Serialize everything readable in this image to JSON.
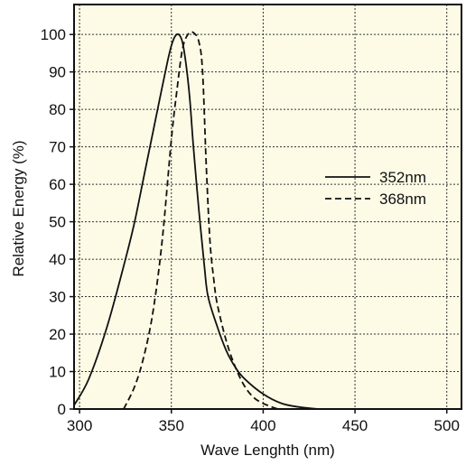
{
  "chart_data": {
    "type": "line",
    "title": "",
    "xlabel": "Wave Lenghth (nm)",
    "ylabel": "Relative Energy (%)",
    "xlim": [
      297,
      508
    ],
    "ylim": [
      0,
      108
    ],
    "xticks": [
      300,
      350,
      400,
      450,
      500
    ],
    "yticks": [
      0,
      10,
      20,
      30,
      40,
      50,
      60,
      70,
      80,
      90,
      100
    ],
    "xtick_labels": [
      "300",
      "350",
      "400",
      "450",
      "500"
    ],
    "ytick_labels": [
      "0",
      "10",
      "20",
      "30",
      "40",
      "50",
      "60",
      "70",
      "80",
      "90",
      "100"
    ],
    "grid": true,
    "legend_position": "right",
    "background_color": "#fdfbe6",
    "series": [
      {
        "name": "352nm",
        "style": "solid",
        "color": "#111111",
        "points": [
          [
            297,
            1
          ],
          [
            305,
            8
          ],
          [
            315,
            22
          ],
          [
            325,
            40
          ],
          [
            330,
            50
          ],
          [
            335,
            62
          ],
          [
            340,
            74
          ],
          [
            345,
            86
          ],
          [
            348,
            93
          ],
          [
            350,
            97
          ],
          [
            352,
            99.5
          ],
          [
            354,
            100
          ],
          [
            356,
            98
          ],
          [
            358,
            92
          ],
          [
            360,
            83
          ],
          [
            362,
            70
          ],
          [
            365,
            53
          ],
          [
            368,
            38
          ],
          [
            370,
            30
          ],
          [
            375,
            22
          ],
          [
            380,
            15.5
          ],
          [
            385,
            11
          ],
          [
            390,
            8
          ],
          [
            400,
            4
          ],
          [
            410,
            1.5
          ],
          [
            420,
            0.5
          ],
          [
            430,
            0
          ]
        ]
      },
      {
        "name": "368nm",
        "style": "dashed",
        "color": "#111111",
        "points": [
          [
            324,
            0
          ],
          [
            330,
            6
          ],
          [
            335,
            14
          ],
          [
            340,
            26
          ],
          [
            345,
            45
          ],
          [
            350,
            72
          ],
          [
            353,
            85
          ],
          [
            356,
            96
          ],
          [
            359,
            100
          ],
          [
            362,
            100.5
          ],
          [
            365,
            98
          ],
          [
            367,
            90
          ],
          [
            369,
            65
          ],
          [
            371,
            45
          ],
          [
            373,
            35
          ],
          [
            375,
            28
          ],
          [
            380,
            18
          ],
          [
            385,
            11
          ],
          [
            390,
            6
          ],
          [
            395,
            3
          ],
          [
            400,
            1.5
          ],
          [
            405,
            0.5
          ],
          [
            408,
            0
          ]
        ]
      }
    ]
  }
}
